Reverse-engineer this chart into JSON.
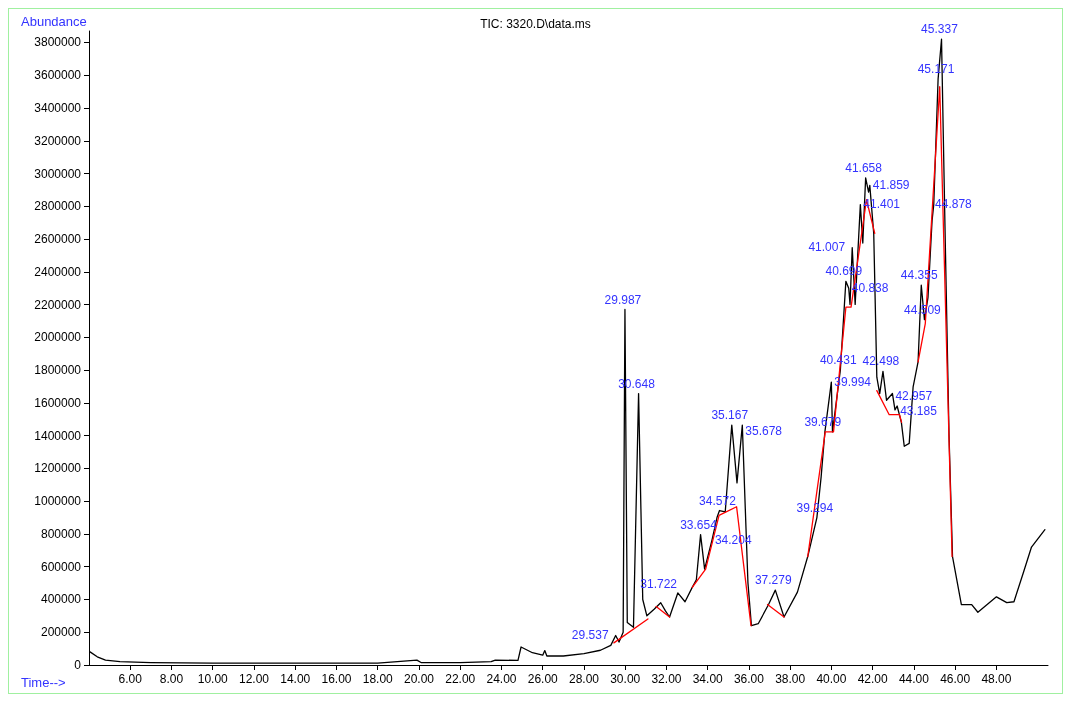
{
  "chart_data": {
    "type": "line",
    "title": "TIC: 3320.D\\data.ms",
    "xlabel": "Time-->",
    "ylabel": "Abundance",
    "xlim": [
      4,
      50.5
    ],
    "ylim": [
      0,
      3870000
    ],
    "xticks": [
      {
        "value": 6,
        "label": "6.00"
      },
      {
        "value": 8,
        "label": "8.00"
      },
      {
        "value": 10,
        "label": "10.00"
      },
      {
        "value": 12,
        "label": "12.00"
      },
      {
        "value": 14,
        "label": "14.00"
      },
      {
        "value": 16,
        "label": "16.00"
      },
      {
        "value": 18,
        "label": "18.00"
      },
      {
        "value": 20,
        "label": "20.00"
      },
      {
        "value": 22,
        "label": "22.00"
      },
      {
        "value": 24,
        "label": "24.00"
      },
      {
        "value": 26,
        "label": "26.00"
      },
      {
        "value": 28,
        "label": "28.00"
      },
      {
        "value": 30,
        "label": "30.00"
      },
      {
        "value": 32,
        "label": "32.00"
      },
      {
        "value": 34,
        "label": "34.00"
      },
      {
        "value": 36,
        "label": "36.00"
      },
      {
        "value": 38,
        "label": "38.00"
      },
      {
        "value": 40,
        "label": "40.00"
      },
      {
        "value": 42,
        "label": "42.00"
      },
      {
        "value": 44,
        "label": "44.00"
      },
      {
        "value": 46,
        "label": "46.00"
      },
      {
        "value": 48,
        "label": "48.00"
      }
    ],
    "yticks": [
      0,
      200000,
      400000,
      600000,
      800000,
      1000000,
      1200000,
      1400000,
      1600000,
      1800000,
      2000000,
      2200000,
      2400000,
      2600000,
      2800000,
      3000000,
      3200000,
      3400000,
      3600000,
      3800000
    ],
    "grid": false,
    "marker": "none",
    "line_style": "solid",
    "series": [
      {
        "color": "#000000",
        "x": [
          4.05,
          4.4,
          4.8,
          5.5,
          7,
          10,
          14,
          18,
          19.9,
          20.1,
          22,
          23.5,
          23.7,
          24.8,
          24.95,
          25.5,
          26.0,
          26.1,
          26.2,
          27,
          28,
          28.8,
          29.3,
          29.537,
          29.7,
          29.9,
          29.987,
          30.1,
          30.4,
          30.648,
          30.85,
          31.05,
          31.4,
          31.722,
          31.95,
          32.15,
          32.55,
          32.9,
          33.25,
          33.45,
          33.654,
          33.85,
          34.204,
          34.45,
          34.572,
          34.85,
          35.167,
          35.42,
          35.678,
          35.95,
          36.12,
          36.45,
          36.95,
          37.279,
          37.7,
          38.35,
          38.85,
          39.294,
          39.5,
          39.679,
          39.994,
          40.05,
          40.431,
          40.699,
          40.838,
          40.9,
          41.007,
          41.15,
          41.401,
          41.52,
          41.658,
          41.8,
          41.859,
          42.05,
          42.2,
          42.34,
          42.498,
          42.67,
          42.957,
          43.08,
          43.185,
          43.39,
          43.53,
          43.77,
          43.96,
          44.2,
          44.355,
          44.509,
          44.68,
          44.878,
          44.96,
          45.171,
          45.337,
          45.52,
          45.7,
          45.87,
          46.3,
          46.8,
          47.1,
          48.0,
          48.5,
          48.85,
          49.3,
          49.7,
          50.35
        ],
        "values": [
          80000,
          50000,
          30000,
          20000,
          15000,
          12000,
          11000,
          12000,
          30000,
          15000,
          15000,
          20000,
          30000,
          28000,
          110000,
          75000,
          60000,
          88000,
          55000,
          55000,
          70000,
          90000,
          120000,
          180000,
          140000,
          200000,
          2170000,
          260000,
          230000,
          1657000,
          400000,
          300000,
          340000,
          380000,
          330000,
          293000,
          440000,
          386000,
          474000,
          520000,
          796000,
          585000,
          761000,
          900000,
          943000,
          935000,
          1464000,
          1112000,
          1464000,
          503000,
          240000,
          252000,
          369000,
          457000,
          293000,
          445000,
          662000,
          900000,
          1148000,
          1420000,
          1727000,
          1423000,
          1800000,
          2342000,
          2300000,
          2201000,
          2547000,
          2201000,
          2810000,
          2576000,
          2974000,
          2886000,
          2928000,
          2635000,
          1757000,
          1657000,
          1792000,
          1616000,
          1657000,
          1557000,
          1581000,
          1481000,
          1335000,
          1353000,
          1698000,
          1850000,
          2318000,
          2108000,
          2242000,
          2711000,
          2810000,
          3577000,
          3820000,
          2576000,
          1405000,
          662000,
          369000,
          369000,
          322000,
          416000,
          381000,
          386000,
          562000,
          720000,
          826000
        ]
      },
      {
        "color": "#ff0000",
        "x": [
          29.45,
          31.1,
          31.3,
          31.5,
          32.15,
          32.7,
          33.25,
          33.9,
          34.55,
          35.4,
          36.1,
          36.5,
          36.9,
          37.7,
          38.3,
          38.85,
          39.7,
          40.1,
          40.7,
          40.95,
          41.7,
          42.1,
          42.15,
          42.2,
          42.8,
          43.3,
          43.4,
          43.8,
          44.2,
          44.55,
          45.25,
          45.85
        ],
        "values": [
          135000,
          281000,
          null,
          357000,
          293000,
          null,
          474000,
          585000,
          913000,
          966000,
          240000,
          null,
          369000,
          293000,
          null,
          662000,
          1423000,
          1423000,
          2184000,
          2184000,
          2840000,
          2635000,
          null,
          1675000,
          1528000,
          1528000,
          1481000,
          null,
          1850000,
          2084000,
          3530000,
          662000
        ]
      }
    ],
    "annotations": [
      {
        "text": "29.537",
        "x": 29.537,
        "y": 180000
      },
      {
        "text": "29.987",
        "x": 29.987,
        "y": 2170000
      },
      {
        "text": "30.648",
        "x": 30.648,
        "y": 1657000
      },
      {
        "text": "31.722",
        "x": 31.722,
        "y": 380000
      },
      {
        "text": "33.654",
        "x": 33.654,
        "y": 796000
      },
      {
        "text": "34.204",
        "x": 34.204,
        "y": 761000
      },
      {
        "text": "34.572",
        "x": 34.572,
        "y": 943000
      },
      {
        "text": "35.167",
        "x": 35.167,
        "y": 1464000
      },
      {
        "text": "35.678",
        "x": 35.678,
        "y": 1464000
      },
      {
        "text": "37.279",
        "x": 37.279,
        "y": 457000
      },
      {
        "text": "39.294",
        "x": 39.294,
        "y": 900000
      },
      {
        "text": "39.679",
        "x": 39.679,
        "y": 1420000
      },
      {
        "text": "39.994",
        "x": 39.994,
        "y": 1727000
      },
      {
        "text": "40.431",
        "x": 40.431,
        "y": 1800000
      },
      {
        "text": "40.699",
        "x": 40.699,
        "y": 2342000
      },
      {
        "text": "40.838",
        "x": 40.838,
        "y": 2300000
      },
      {
        "text": "41.007",
        "x": 41.007,
        "y": 2547000
      },
      {
        "text": "41.401",
        "x": 41.401,
        "y": 2810000
      },
      {
        "text": "41.658",
        "x": 41.658,
        "y": 2974000
      },
      {
        "text": "41.859",
        "x": 41.859,
        "y": 2928000
      },
      {
        "text": "42.498",
        "x": 42.498,
        "y": 1792000
      },
      {
        "text": "42.957",
        "x": 42.957,
        "y": 1657000
      },
      {
        "text": "43.185",
        "x": 43.185,
        "y": 1581000
      },
      {
        "text": "44.355",
        "x": 44.355,
        "y": 2318000
      },
      {
        "text": "44.509",
        "x": 44.509,
        "y": 2108000
      },
      {
        "text": "44.878",
        "x": 44.878,
        "y": 2810000
      },
      {
        "text": "45.171",
        "x": 45.171,
        "y": 3577000
      },
      {
        "text": "45.337",
        "x": 45.337,
        "y": 3820000
      }
    ]
  }
}
